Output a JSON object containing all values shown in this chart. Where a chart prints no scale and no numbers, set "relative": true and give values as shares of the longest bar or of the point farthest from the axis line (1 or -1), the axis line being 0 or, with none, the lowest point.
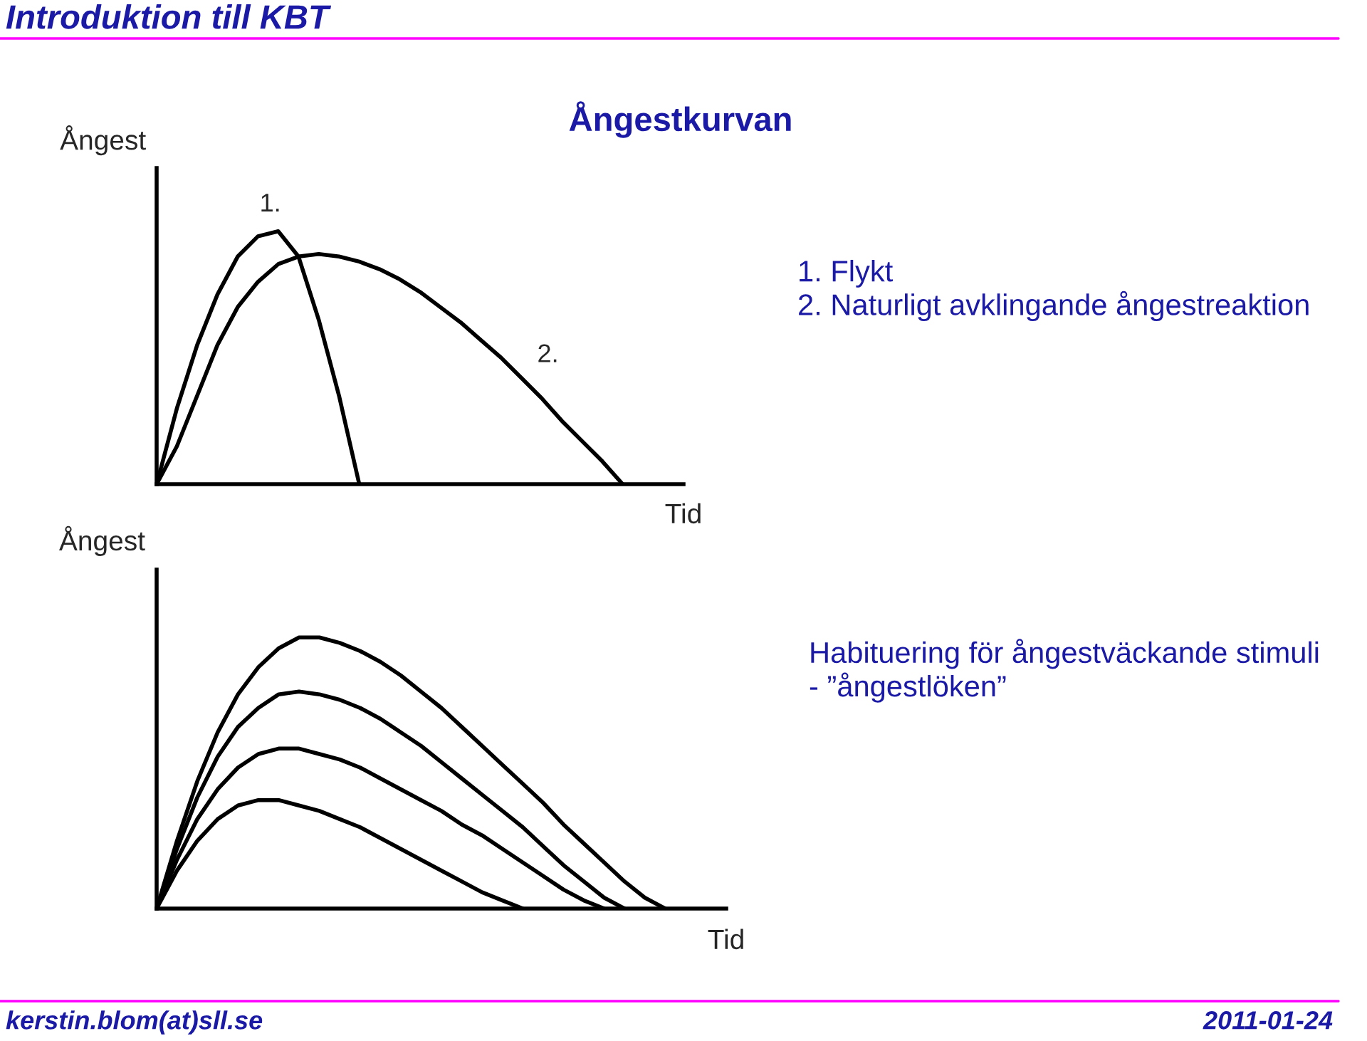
{
  "chart_data": [
    {
      "type": "line",
      "relative": true,
      "title": "Ångestkurvan",
      "ylabel": "Ångest",
      "xlabel": "Tid",
      "legend": false,
      "annotations": [
        "Introduktion till KBT",
        "1. Flykt\n2. Naturligt avklingande ångestreaktion",
        "kerstin.blom(at)sll.se",
        "2011-01-24"
      ],
      "categories": [
        null,
        null,
        null,
        null,
        null,
        null,
        null,
        null,
        null,
        null,
        null,
        null,
        null,
        null,
        null,
        null,
        null,
        null,
        null,
        null,
        null,
        null,
        null,
        null,
        null,
        null
      ],
      "series": [
        {
          "name": "1.",
          "color": "#000000",
          "values": [
            0,
            0.3,
            0.55,
            0.75,
            0.9,
            0.98,
            1.0,
            0.9,
            0.65,
            0.35,
            0,
            null,
            null,
            null,
            null,
            null,
            null,
            null,
            null,
            null,
            null,
            null,
            null,
            null,
            null,
            null
          ]
        },
        {
          "name": "2.",
          "color": "#000000",
          "values": [
            0,
            0.15,
            0.35,
            0.55,
            0.7,
            0.8,
            0.87,
            0.9,
            0.91,
            0.9,
            0.88,
            0.85,
            0.81,
            0.76,
            0.7,
            0.64,
            0.57,
            0.5,
            0.42,
            0.34,
            0.25,
            0.17,
            0.09,
            0,
            null,
            null
          ]
        }
      ]
    },
    {
      "type": "line",
      "relative": true,
      "ylabel": "Ångest",
      "xlabel": "Tid",
      "legend": false,
      "annotations": [
        "Habituering för ångestväckande stimuli\n- ”ångestlöken”"
      ],
      "categories": [
        null,
        null,
        null,
        null,
        null,
        null,
        null,
        null,
        null,
        null,
        null,
        null,
        null,
        null,
        null,
        null,
        null,
        null,
        null,
        null,
        null,
        null,
        null,
        null,
        null,
        null,
        null,
        null
      ],
      "series": [
        {
          "color": "#000000",
          "values": [
            0,
            0.25,
            0.47,
            0.65,
            0.79,
            0.89,
            0.96,
            1.0,
            1.0,
            0.98,
            0.95,
            0.91,
            0.86,
            0.8,
            0.74,
            0.67,
            0.6,
            0.53,
            0.46,
            0.39,
            0.31,
            0.24,
            0.17,
            0.1,
            0.04,
            0,
            null,
            null
          ]
        },
        {
          "color": "#000000",
          "values": [
            0,
            0.22,
            0.41,
            0.56,
            0.67,
            0.74,
            0.79,
            0.8,
            0.79,
            0.77,
            0.74,
            0.7,
            0.65,
            0.6,
            0.54,
            0.48,
            0.42,
            0.36,
            0.3,
            0.23,
            0.16,
            0.1,
            0.04,
            0,
            null,
            null,
            null,
            null
          ]
        },
        {
          "color": "#000000",
          "values": [
            0,
            0.18,
            0.33,
            0.44,
            0.52,
            0.57,
            0.59,
            0.59,
            0.57,
            0.55,
            0.52,
            0.48,
            0.44,
            0.4,
            0.36,
            0.31,
            0.27,
            0.22,
            0.17,
            0.12,
            0.07,
            0.03,
            0,
            null,
            null,
            null,
            null,
            null
          ]
        },
        {
          "color": "#000000",
          "values": [
            0,
            0.14,
            0.25,
            0.33,
            0.38,
            0.4,
            0.4,
            0.38,
            0.36,
            0.33,
            0.3,
            0.26,
            0.22,
            0.18,
            0.14,
            0.1,
            0.06,
            0.03,
            0,
            null,
            null,
            null,
            null,
            null,
            null,
            null,
            null,
            null
          ]
        }
      ]
    }
  ]
}
